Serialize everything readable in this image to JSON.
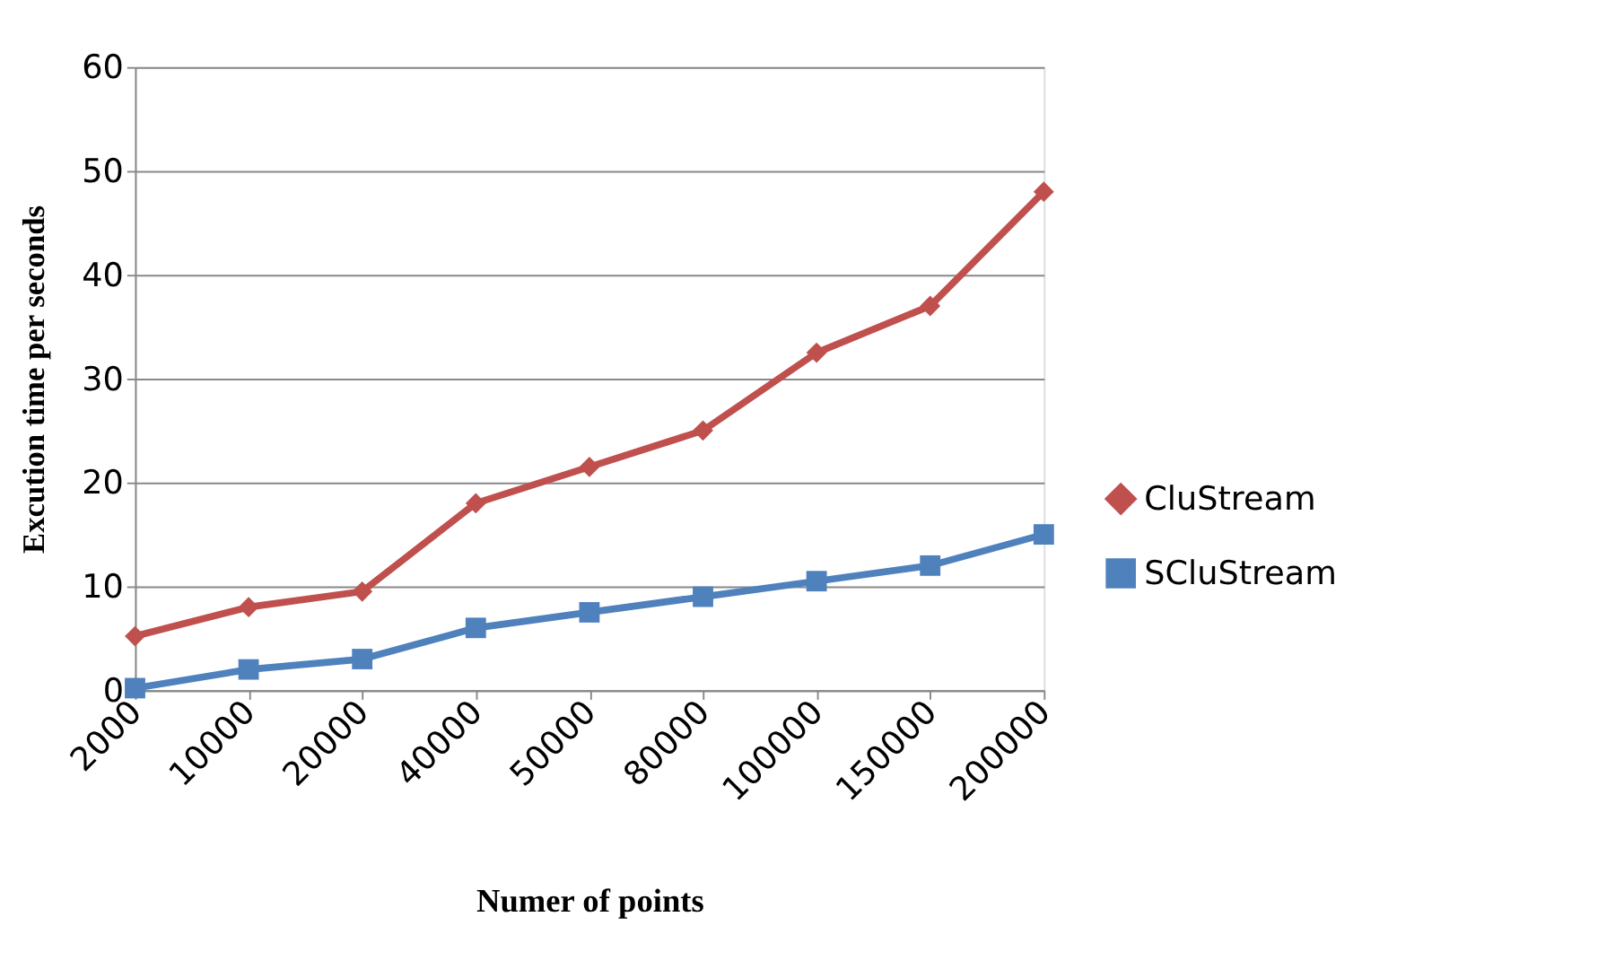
{
  "chart_data": {
    "type": "line",
    "xlabel": "Numer of points",
    "ylabel": "Excution time  per seconds",
    "categories": [
      "2000",
      "10000",
      "20000",
      "40000",
      "50000",
      "80000",
      "100000",
      "150000",
      "200000"
    ],
    "series": [
      {
        "name": "CluStream",
        "color": "#c0504d",
        "marker": "diamond",
        "values": [
          5.2,
          8,
          9.5,
          18,
          21.5,
          25,
          32.5,
          37,
          48
        ]
      },
      {
        "name": "SCluStream",
        "color": "#4f81bd",
        "marker": "square",
        "values": [
          0.2,
          2,
          3,
          6,
          7.5,
          9,
          10.5,
          12,
          15
        ]
      }
    ],
    "ylim": [
      0,
      60
    ],
    "yticks": [
      0,
      10,
      20,
      30,
      40,
      50,
      60
    ],
    "grid": "y",
    "legend": "right",
    "line_style": "solid"
  }
}
